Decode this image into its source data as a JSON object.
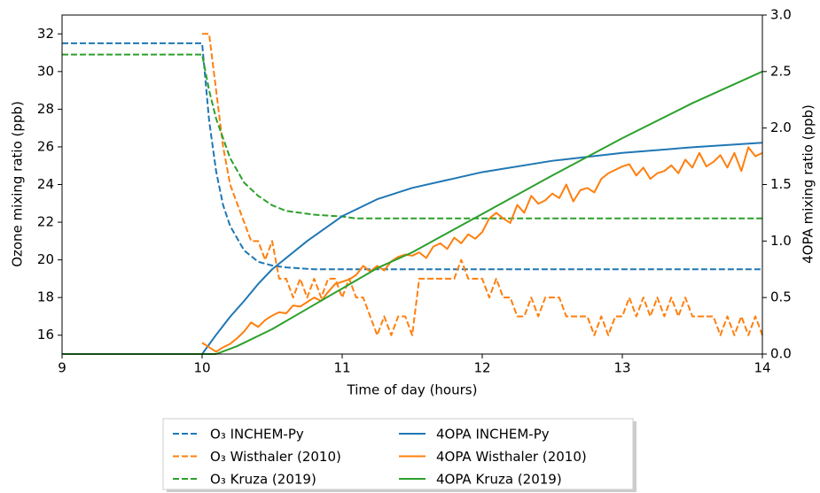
{
  "chart_data": {
    "type": "line",
    "xlabel": "Time of day (hours)",
    "ylabel": "Ozone mixing ratio (ppb)",
    "y2label": "4OPA mixing ratio (ppb)",
    "xlim": [
      9,
      14
    ],
    "xticks": [
      9,
      10,
      11,
      12,
      13,
      14
    ],
    "ylim": [
      15,
      33
    ],
    "yticks": [
      16,
      18,
      20,
      22,
      24,
      26,
      28,
      30,
      32
    ],
    "y2lim": [
      0,
      3
    ],
    "y2ticks": [
      {
        "value": 0,
        "label": "0.0"
      },
      0.5,
      {
        "value": 1,
        "label": "1.0"
      },
      1.5,
      {
        "value": 2,
        "label": "2.0"
      },
      2.5,
      {
        "value": 3,
        "label": "3.0"
      }
    ],
    "grid": false,
    "legend_loc": "below",
    "series": [
      {
        "name": "O₃ INCHEM-Py",
        "color": "#1f77b4",
        "linestyle": "dashed",
        "x": [
          9,
          10,
          10.05,
          10.1,
          10.15,
          10.2,
          10.3,
          10.4,
          10.5,
          10.6,
          10.8,
          11,
          11.5,
          12,
          13,
          14
        ],
        "values": [
          31.5,
          31.5,
          27.4,
          24.7,
          22.9,
          21.8,
          20.5,
          19.9,
          19.7,
          19.6,
          19.5,
          19.5,
          19.5,
          19.5,
          19.5,
          19.5
        ]
      },
      {
        "name": "O₃ Wisthaler (2010)",
        "color": "#ff7f0e",
        "linestyle": "dashed",
        "x": [
          10,
          10.05,
          10.1,
          10.15,
          10.2,
          10.25,
          10.3,
          10.35,
          10.4,
          10.45,
          10.5,
          10.55,
          10.6,
          10.65,
          10.7,
          10.75,
          10.8,
          10.85,
          10.9,
          10.95,
          11,
          11.05,
          11.1,
          11.15,
          11.2,
          11.25,
          11.3,
          11.35,
          11.4,
          11.45,
          11.5,
          11.55,
          11.6,
          11.65,
          11.7,
          11.75,
          11.8,
          11.85,
          11.9,
          11.95,
          12,
          12.05,
          12.1,
          12.15,
          12.2,
          12.25,
          12.3,
          12.35,
          12.4,
          12.45,
          12.5,
          12.55,
          12.6,
          12.65,
          12.7,
          12.75,
          12.8,
          12.85,
          12.9,
          12.95,
          13,
          13.05,
          13.1,
          13.15,
          13.2,
          13.25,
          13.3,
          13.35,
          13.4,
          13.45,
          13.5,
          13.55,
          13.6,
          13.65,
          13.7,
          13.75,
          13.8,
          13.85,
          13.9,
          13.95,
          14
        ],
        "values": [
          32,
          32,
          29,
          26,
          24,
          23,
          22,
          21,
          21,
          20,
          21,
          19,
          19,
          18,
          19,
          18,
          19,
          18,
          19,
          19,
          18,
          19,
          18,
          18,
          17,
          16,
          17,
          16,
          17,
          17,
          16,
          19,
          19,
          19,
          19,
          19,
          19,
          20,
          19,
          19,
          19,
          18,
          19,
          18,
          18,
          17,
          17,
          18,
          17,
          18,
          18,
          18,
          17,
          17,
          17,
          17,
          16,
          17,
          16,
          17,
          17,
          18,
          17,
          18,
          17,
          18,
          17,
          18,
          17,
          18,
          17,
          17,
          17,
          17,
          16,
          17,
          16,
          17,
          16,
          17,
          16
        ]
      },
      {
        "name": "O₃ Kruza (2019)",
        "color": "#2ca02c",
        "linestyle": "dashed",
        "x": [
          9,
          10,
          10.05,
          10.1,
          10.2,
          10.3,
          10.4,
          10.5,
          10.6,
          10.8,
          11,
          11.1,
          12,
          13,
          14
        ],
        "values": [
          30.9,
          30.9,
          29.0,
          27.5,
          25.4,
          24.1,
          23.4,
          22.9,
          22.6,
          22.4,
          22.3,
          22.2,
          22.2,
          22.2,
          22.2
        ]
      },
      {
        "name": "4OPA INCHEM-Py",
        "color": "#1f77b4",
        "linestyle": "solid",
        "axis": "y2",
        "x": [
          9,
          10,
          10.1,
          10.2,
          10.3,
          10.4,
          10.5,
          10.75,
          11,
          11.25,
          11.5,
          11.75,
          12,
          12.5,
          13,
          13.5,
          14
        ],
        "values": [
          0,
          0,
          0.17,
          0.33,
          0.47,
          0.62,
          0.75,
          1.0,
          1.22,
          1.37,
          1.47,
          1.54,
          1.61,
          1.71,
          1.78,
          1.83,
          1.87
        ]
      },
      {
        "name": "4OPA Wisthaler (2010)",
        "color": "#ff7f0e",
        "linestyle": "solid",
        "axis": "y2",
        "x": [
          10,
          10.05,
          10.1,
          10.15,
          10.2,
          10.25,
          10.3,
          10.35,
          10.4,
          10.45,
          10.5,
          10.55,
          10.6,
          10.65,
          10.7,
          10.75,
          10.8,
          10.85,
          10.9,
          10.95,
          11,
          11.05,
          11.1,
          11.15,
          11.2,
          11.25,
          11.3,
          11.35,
          11.4,
          11.45,
          11.5,
          11.55,
          11.6,
          11.65,
          11.7,
          11.75,
          11.8,
          11.85,
          11.9,
          11.95,
          12,
          12.05,
          12.1,
          12.15,
          12.2,
          12.25,
          12.3,
          12.35,
          12.4,
          12.45,
          12.5,
          12.55,
          12.6,
          12.65,
          12.7,
          12.75,
          12.8,
          12.85,
          12.9,
          12.95,
          13,
          13.05,
          13.1,
          13.15,
          13.2,
          13.25,
          13.3,
          13.35,
          13.4,
          13.45,
          13.5,
          13.55,
          13.6,
          13.65,
          13.7,
          13.75,
          13.8,
          13.85,
          13.9,
          13.95,
          14
        ],
        "values": [
          0.1,
          0.06,
          0.02,
          0.06,
          0.09,
          0.14,
          0.2,
          0.28,
          0.24,
          0.3,
          0.34,
          0.37,
          0.36,
          0.43,
          0.42,
          0.46,
          0.5,
          0.47,
          0.55,
          0.62,
          0.64,
          0.66,
          0.7,
          0.78,
          0.73,
          0.78,
          0.74,
          0.82,
          0.86,
          0.88,
          0.87,
          0.9,
          0.85,
          0.95,
          0.98,
          0.93,
          1.03,
          0.98,
          1.06,
          1.02,
          1.08,
          1.2,
          1.25,
          1.2,
          1.16,
          1.32,
          1.25,
          1.4,
          1.33,
          1.36,
          1.42,
          1.38,
          1.5,
          1.35,
          1.45,
          1.47,
          1.43,
          1.55,
          1.6,
          1.63,
          1.66,
          1.68,
          1.58,
          1.65,
          1.55,
          1.6,
          1.62,
          1.67,
          1.6,
          1.72,
          1.65,
          1.78,
          1.66,
          1.7,
          1.76,
          1.65,
          1.78,
          1.62,
          1.83,
          1.75,
          1.78
        ]
      },
      {
        "name": "4OPA Kruza (2019)",
        "color": "#2ca02c",
        "linestyle": "solid",
        "axis": "y2",
        "x": [
          9,
          10.1,
          10.25,
          10.5,
          10.75,
          11,
          11.25,
          11.5,
          11.75,
          12,
          12.5,
          13,
          13.5,
          14
        ],
        "values": [
          0,
          0,
          0.07,
          0.22,
          0.4,
          0.58,
          0.76,
          0.9,
          1.07,
          1.24,
          1.58,
          1.91,
          2.22,
          2.5
        ]
      }
    ]
  }
}
